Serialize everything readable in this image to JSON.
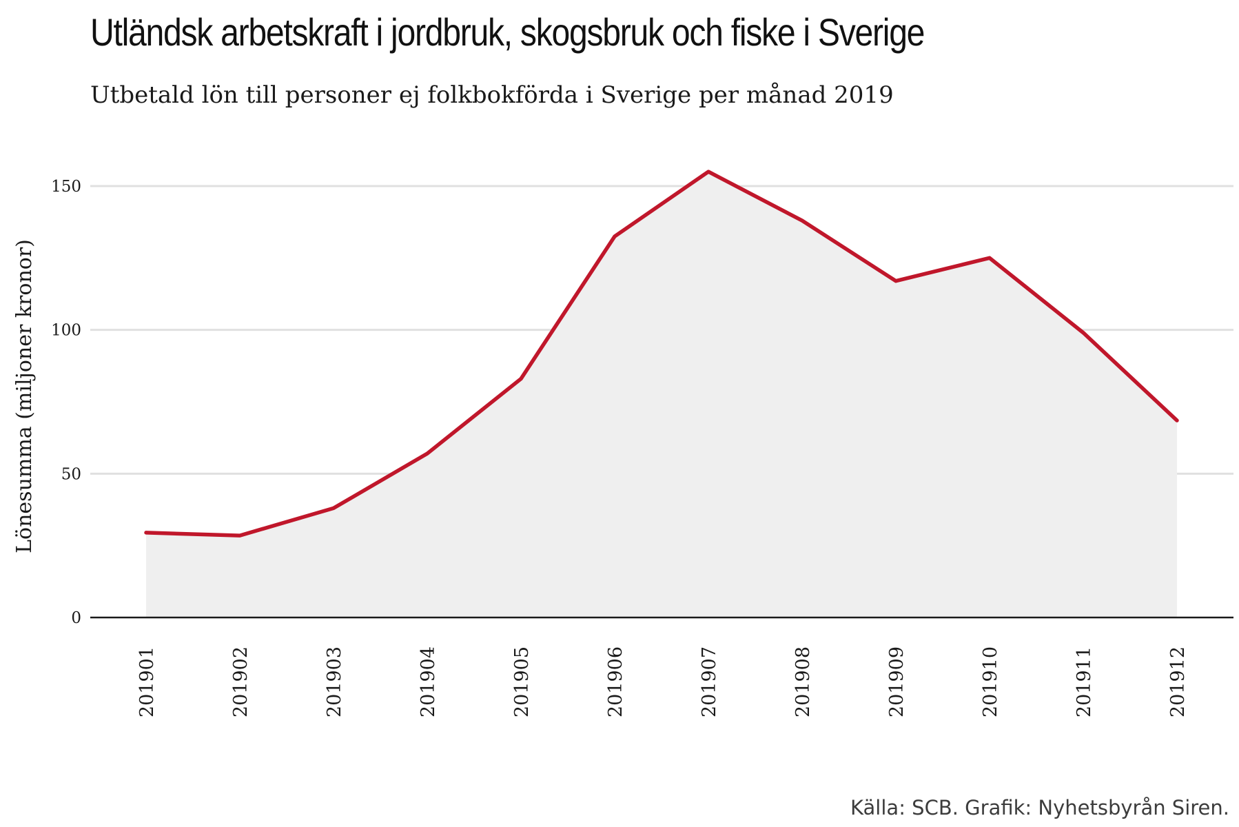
{
  "header": {
    "title": "Utländsk arbetskraft i jordbruk, skogsbruk och fiske i Sverige",
    "subtitle": "Utbetald lön till personer ej folkbokförda i Sverige per månad 2019"
  },
  "footer": {
    "source": "Källa: SCB. Grafik: Nyhetsbyrån Siren."
  },
  "colors": {
    "line": "#c0172b",
    "area": "#efefef",
    "grid": "#e0e0e0",
    "axis": "#1a1a1a"
  },
  "chart_data": {
    "type": "area",
    "title": "Utländsk arbetskraft i jordbruk, skogsbruk och fiske i Sverige",
    "subtitle": "Utbetald lön till personer ej folkbokförda i Sverige per månad 2019",
    "xlabel": "",
    "ylabel": "Lönesumma (miljoner kronor)",
    "categories": [
      "201901",
      "201902",
      "201903",
      "201904",
      "201905",
      "201906",
      "201907",
      "201908",
      "201909",
      "201910",
      "201911",
      "201912"
    ],
    "values": [
      29.5,
      28.5,
      38,
      57,
      83,
      132.5,
      155,
      138,
      117,
      125,
      99,
      68.5
    ],
    "ylim": [
      0,
      150
    ],
    "yticks": [
      0,
      50,
      100,
      150
    ],
    "grid": true,
    "legend": "none",
    "x_tick_rotation": "vertical"
  }
}
